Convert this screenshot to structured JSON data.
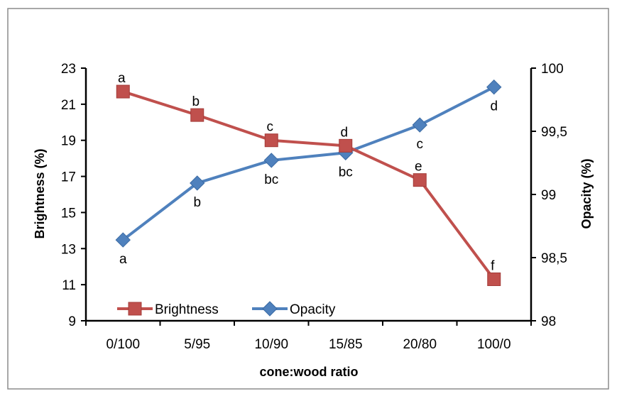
{
  "chart_data": {
    "type": "line",
    "categories": [
      "0/100",
      "5/95",
      "10/90",
      "15/85",
      "20/80",
      "100/0"
    ],
    "xlabel": "cone:wood ratio",
    "ylabel": "Brightness (%)",
    "y2label": "Opacity (%)",
    "ylim": [
      9,
      23
    ],
    "yticks": [
      "9",
      "11",
      "13",
      "15",
      "17",
      "19",
      "21",
      "23"
    ],
    "y2lim": [
      98,
      100
    ],
    "y2ticks": [
      "98",
      "98,5",
      "99",
      "99,5",
      "100"
    ],
    "grid": false,
    "legend_position": "bottom-left",
    "series": [
      {
        "name": "Brightness",
        "axis": "left",
        "color": "#c0504d",
        "marker": "square",
        "values": [
          21.7,
          20.4,
          19.0,
          18.7,
          16.8,
          11.3
        ],
        "labels": [
          "a",
          "b",
          "c",
          "d",
          "e",
          "f"
        ]
      },
      {
        "name": "Opacity",
        "axis": "right",
        "color": "#4f81bd",
        "marker": "diamond",
        "values": [
          98.64,
          99.09,
          99.27,
          99.33,
          99.55,
          99.85
        ],
        "labels": [
          "a",
          "b",
          "bc",
          "bc",
          "c",
          "d"
        ]
      }
    ]
  }
}
